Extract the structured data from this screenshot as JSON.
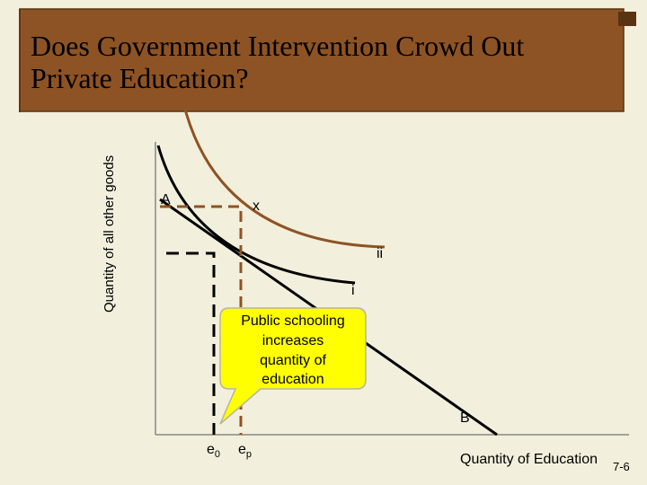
{
  "header": {
    "title_lines": [
      "Does Government Intervention Crowd Out",
      "Private Education?"
    ]
  },
  "diagram": {
    "y_axis_label": "Quantity of all other goods",
    "x_axis_label": "Quantity of Education",
    "points": {
      "A": "A",
      "x": "x",
      "ii": "ii",
      "i": "i",
      "B": "B"
    },
    "e0": {
      "base": "e",
      "subscript": "0"
    },
    "ep": {
      "base": "e",
      "subscript": "p"
    },
    "callout_lines": [
      "Public schooling",
      "increases",
      "quantity of",
      "education"
    ]
  },
  "footer": {
    "slide_number": "7-6"
  }
}
